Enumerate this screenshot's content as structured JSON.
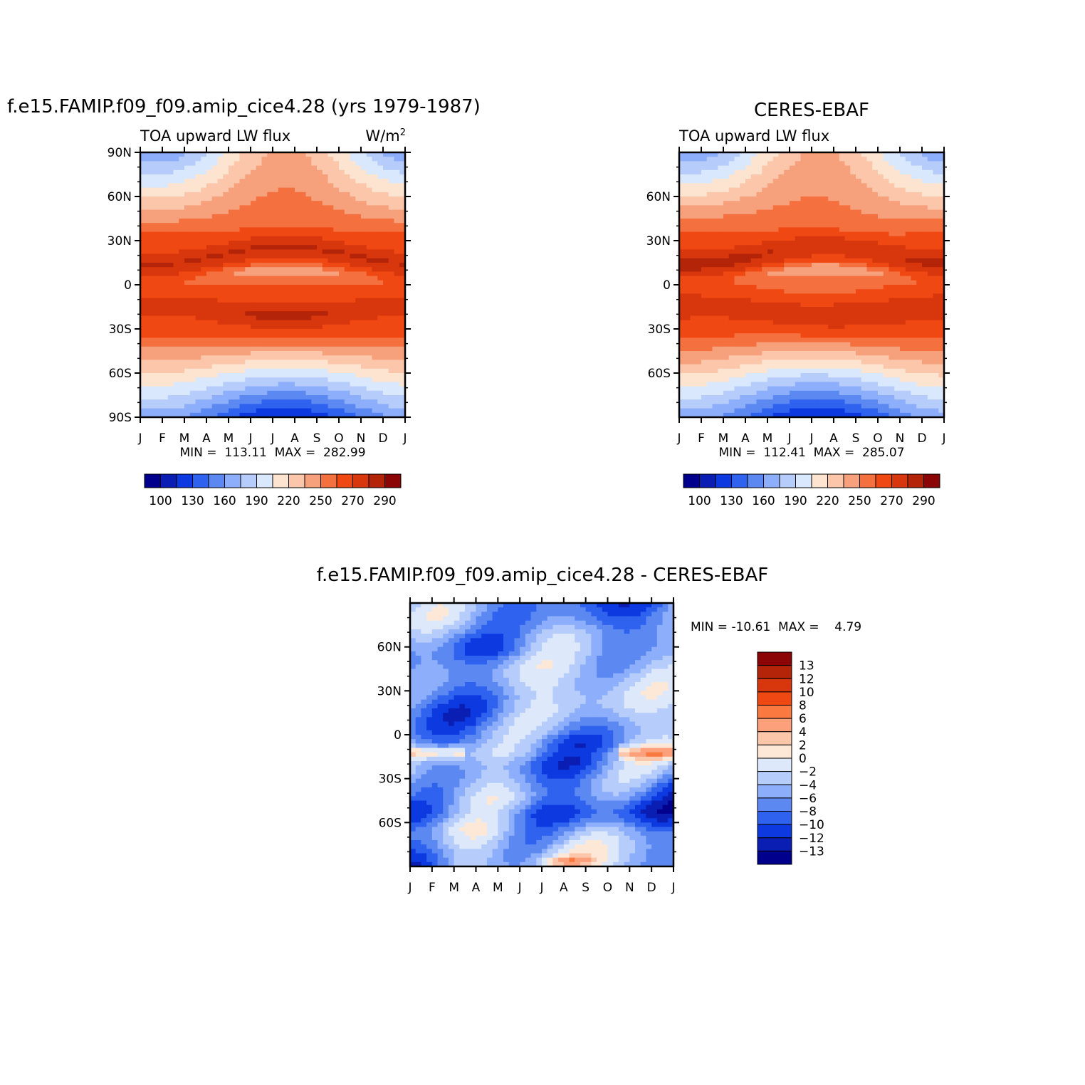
{
  "chart_data": [
    {
      "type": "heatmap",
      "title": "f.e15.FAMIP.f09_f09.amip_cice4.28 (yrs 1979-1987)",
      "variable": "TOA upward LW flux",
      "units_base": "W/m",
      "units_sup": "2",
      "x_ticks": [
        "J",
        "F",
        "M",
        "A",
        "M",
        "J",
        "J",
        "A",
        "S",
        "O",
        "N",
        "D",
        "J"
      ],
      "y_ticks": [
        "90N",
        "60N",
        "30N",
        "0",
        "30S",
        "60S",
        "90S"
      ],
      "minmax": "MIN =  113.11  MAX =  282.99",
      "colorbar": {
        "labels": [
          "100",
          "130",
          "160",
          "190",
          "220",
          "250",
          "270",
          "290"
        ],
        "colors": [
          "#00008c",
          "#0a1eb4",
          "#0c3ae0",
          "#2f62ee",
          "#5c88f2",
          "#8daefa",
          "#b6cdfb",
          "#dae8fd",
          "#fde4d0",
          "#fbc6aa",
          "#f7a07c",
          "#f4703e",
          "#f04812",
          "#d8360c",
          "#b32408",
          "#8c0506"
        ]
      }
    },
    {
      "type": "heatmap",
      "title": "CERES-EBAF",
      "variable": "TOA upward LW flux",
      "x_ticks": [
        "J",
        "F",
        "M",
        "A",
        "M",
        "J",
        "J",
        "A",
        "S",
        "O",
        "N",
        "D",
        "J"
      ],
      "y_ticks": [
        "60N",
        "30N",
        "0",
        "30S",
        "60S"
      ],
      "minmax": "MIN =  112.41  MAX =  285.07",
      "colorbar": {
        "labels": [
          "100",
          "130",
          "160",
          "190",
          "220",
          "250",
          "270",
          "290"
        ],
        "colors": [
          "#00008c",
          "#0a1eb4",
          "#0c3ae0",
          "#2f62ee",
          "#5c88f2",
          "#8daefa",
          "#b6cdfb",
          "#dae8fd",
          "#fde4d0",
          "#fbc6aa",
          "#f7a07c",
          "#f4703e",
          "#f04812",
          "#d8360c",
          "#b32408",
          "#8c0506"
        ]
      }
    },
    {
      "type": "heatmap",
      "title": "f.e15.FAMIP.f09_f09.amip_cice4.28 - CERES-EBAF",
      "x_ticks": [
        "J",
        "F",
        "M",
        "A",
        "M",
        "J",
        "J",
        "A",
        "S",
        "O",
        "N",
        "D",
        "J"
      ],
      "y_ticks": [
        "60N",
        "30N",
        "0",
        "30S",
        "60S"
      ],
      "minmax": "MIN = -10.61  MAX =    4.79",
      "colorbar": {
        "labels": [
          "13",
          "12",
          "10",
          "8",
          "6",
          "4",
          "2",
          "0",
          "-2",
          "-4",
          "-6",
          "-8",
          "-10",
          "-12",
          "-13"
        ],
        "colors": [
          "#8c0506",
          "#b32408",
          "#d8360c",
          "#f04812",
          "#f97940",
          "#fba07a",
          "#fbc6aa",
          "#fde8d8",
          "#dde9fb",
          "#b6cdfb",
          "#8daefa",
          "#5c88f2",
          "#2f62ee",
          "#0c3ae0",
          "#0a1eb4",
          "#00008c"
        ]
      }
    }
  ]
}
